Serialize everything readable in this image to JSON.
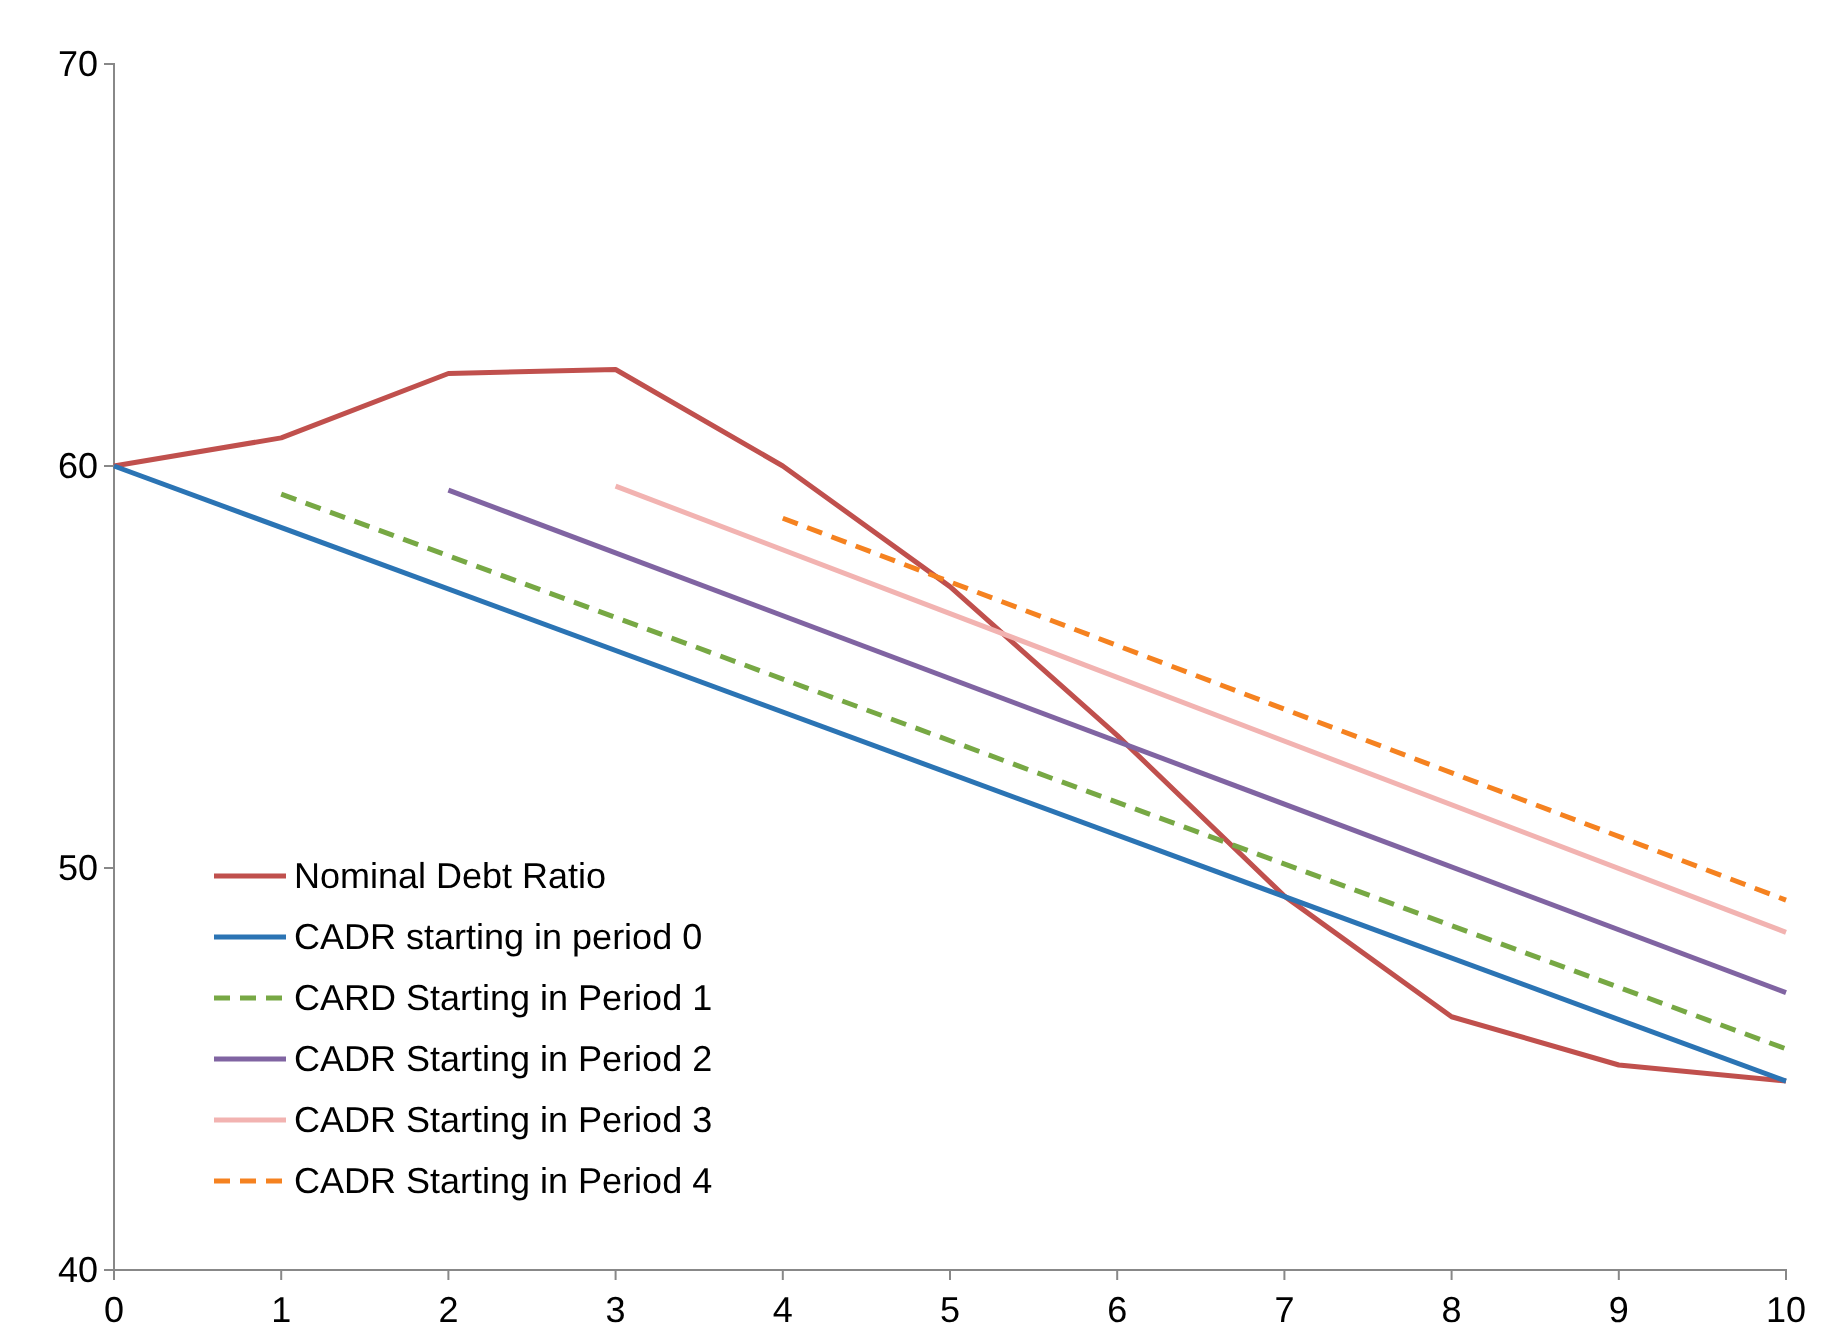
{
  "chart_data": {
    "type": "line",
    "xlim": [
      0,
      10
    ],
    "xticks": [
      0,
      1,
      2,
      3,
      4,
      5,
      6,
      7,
      8,
      9,
      10
    ],
    "ylim": [
      40,
      70
    ],
    "yticks": [
      40,
      50,
      60,
      70
    ],
    "grid": false,
    "legend": "bottom left",
    "marker": "none",
    "series": [
      {
        "name": "Nominal Debt Ratio",
        "color": "#c0504d",
        "line_style": "solid",
        "x": [
          0,
          1,
          2,
          3,
          4,
          5,
          6,
          7,
          8,
          9,
          10
        ],
        "values": [
          60,
          60.7,
          62.3,
          62.4,
          60,
          57,
          53.3,
          49.3,
          46.3,
          45.1,
          44.7
        ]
      },
      {
        "name": "CADR starting in period 0",
        "color": "#2b74b4",
        "line_style": "solid",
        "x": [
          0,
          10
        ],
        "values": [
          60,
          44.7
        ]
      },
      {
        "name": "CARD Starting in Period 1",
        "color": "#77a844",
        "line_style": "dashed",
        "x": [
          1,
          10
        ],
        "values": [
          59.3,
          45.5
        ]
      },
      {
        "name": "CADR Starting in Period 2",
        "color": "#8064a2",
        "line_style": "solid",
        "x": [
          2,
          10
        ],
        "values": [
          59.4,
          46.9
        ]
      },
      {
        "name": "CADR Starting in Period 3",
        "color": "#f2b3b1",
        "line_style": "solid",
        "x": [
          3,
          10
        ],
        "values": [
          59.5,
          48.4
        ]
      },
      {
        "name": "CADR Starting in Period 4",
        "color": "#f58220",
        "line_style": "dashed",
        "x": [
          4,
          10
        ],
        "values": [
          58.7,
          49.2
        ]
      }
    ]
  }
}
